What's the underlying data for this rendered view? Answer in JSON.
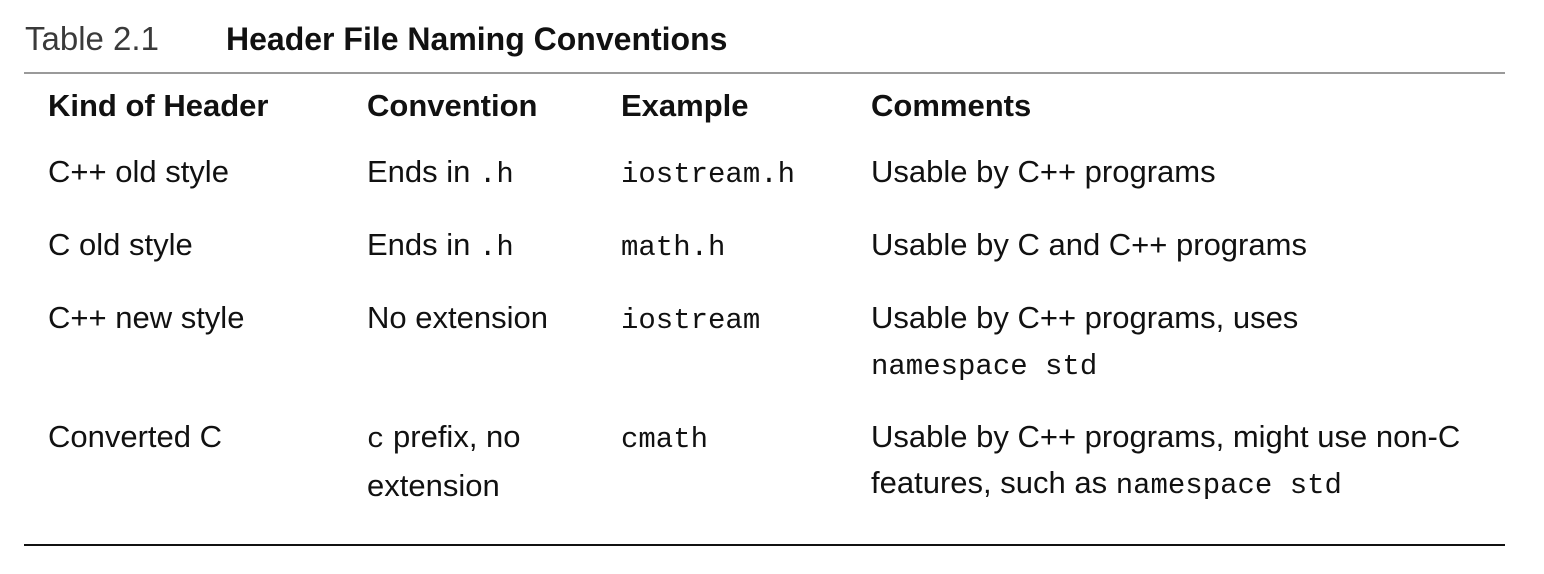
{
  "caption": {
    "number": "Table 2.1",
    "title": "Header File Naming Conventions"
  },
  "columns": [
    "Kind of Header",
    "Convention",
    "Example",
    "Comments"
  ],
  "rows": [
    {
      "kind": "C++ old style",
      "convention": {
        "text": "Ends in ",
        "code": ".h"
      },
      "example": "iostream.h",
      "comments": {
        "text": "Usable by C++ programs"
      }
    },
    {
      "kind": "C old style",
      "convention": {
        "text": "Ends in ",
        "code": ".h"
      },
      "example": "math.h",
      "comments": {
        "text": "Usable by C and C++ programs"
      }
    },
    {
      "kind": "C++ new style",
      "convention": {
        "text": "No extension"
      },
      "example": "iostream",
      "comments": {
        "text": "Usable by C++ programs, uses",
        "code": "namespace std"
      }
    },
    {
      "kind": "Converted C",
      "convention": {
        "code": "c",
        "text": " prefix, no extension"
      },
      "example": "cmath",
      "comments": {
        "text": "Usable by C++ programs, might use non-C features, such as ",
        "code": "namespace std"
      }
    }
  ]
}
